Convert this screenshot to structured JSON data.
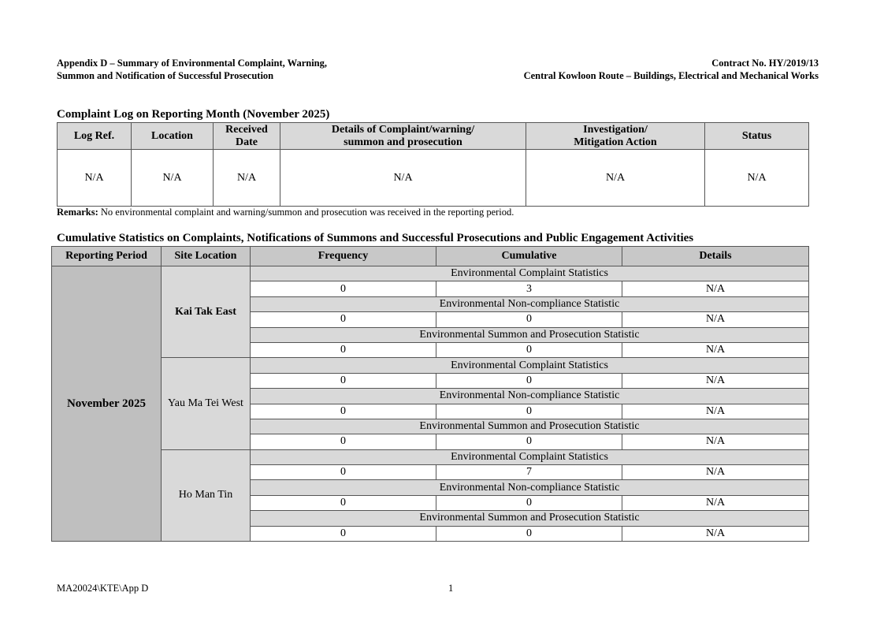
{
  "header": {
    "left_line1": "Appendix D – Summary of Environmental Complaint, Warning,",
    "left_line2": "Summon and Notification of Successful Prosecution",
    "right_line1": "Contract No. HY/2019/13",
    "right_line2": "Central Kowloon Route – Buildings, Electrical and Mechanical Works"
  },
  "complaint_log": {
    "title": "Complaint Log on Reporting Month (November 2025)",
    "columns": [
      "Log Ref.",
      "Location",
      "Received\nDate",
      "Details of Complaint/warning/\nsummon and prosecution",
      "Investigation/\nMitigation Action",
      "Status"
    ],
    "row": [
      "N/A",
      "N/A",
      "N/A",
      "N/A",
      "N/A",
      "N/A"
    ],
    "remarks_label": "Remarks:",
    "remarks_text": " No environmental complaint and warning/summon and prosecution was received in the reporting period."
  },
  "cumulative": {
    "title": "Cumulative Statistics on Complaints, Notifications of Summons and Successful Prosecutions and Public Engagement Activities",
    "columns": [
      "Reporting Period",
      "Site Location",
      "Frequency",
      "Cumulative",
      "Details"
    ],
    "period": "November 2025",
    "sites": [
      {
        "name": "Kai Tak East",
        "bold": true,
        "groups": [
          {
            "label": "Environmental Complaint Statistics",
            "values": [
              "0",
              "3",
              "N/A"
            ]
          },
          {
            "label": "Environmental Non-compliance Statistic",
            "values": [
              "0",
              "0",
              "N/A"
            ]
          },
          {
            "label": "Environmental Summon and Prosecution Statistic",
            "values": [
              "0",
              "0",
              "N/A"
            ]
          }
        ]
      },
      {
        "name": "Yau Ma Tei West",
        "bold": false,
        "groups": [
          {
            "label": "Environmental Complaint Statistics",
            "values": [
              "0",
              "0",
              "N/A"
            ]
          },
          {
            "label": "Environmental Non-compliance Statistic",
            "values": [
              "0",
              "0",
              "N/A"
            ]
          },
          {
            "label": "Environmental Summon and Prosecution Statistic",
            "values": [
              "0",
              "0",
              "N/A"
            ]
          }
        ]
      },
      {
        "name": "Ho Man Tin",
        "bold": false,
        "groups": [
          {
            "label": "Environmental Complaint Statistics",
            "values": [
              "0",
              "7",
              "N/A"
            ]
          },
          {
            "label": "Environmental Non-compliance Statistic",
            "values": [
              "0",
              "0",
              "N/A"
            ]
          },
          {
            "label": "Environmental Summon and Prosecution Statistic",
            "values": [
              "0",
              "0",
              "N/A"
            ]
          }
        ]
      }
    ]
  },
  "footer": {
    "ref": "MA20024\\KTE\\App D",
    "page": "1"
  }
}
